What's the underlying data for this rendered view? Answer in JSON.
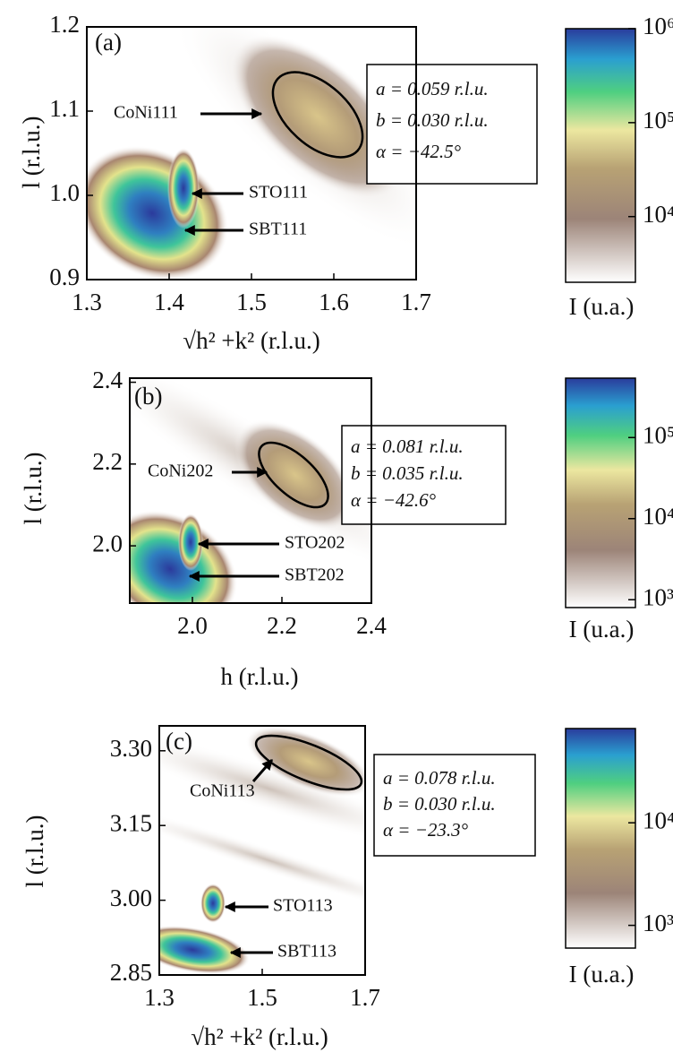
{
  "chart_data": [
    {
      "type": "heatmap",
      "panel": "(a)",
      "xlabel": "√h² +k² (r.l.u.)",
      "ylabel": "l (r.l.u.)",
      "xlim": [
        1.3,
        1.7
      ],
      "xticks": [
        1.3,
        1.4,
        1.5,
        1.6,
        1.7
      ],
      "ylim": [
        0.9,
        1.2
      ],
      "yticks": [
        0.9,
        {
          "value": 1,
          "label": "1.0"
        },
        1.1,
        1.2
      ],
      "annotations": [
        "CoNi111",
        "STO111",
        "SBT111"
      ],
      "fit": [
        "a = 0.059 r.l.u.",
        "b = 0.030 r.l.u.",
        "α = −42.5°"
      ],
      "colorbar": {
        "label": "I (u.a.)",
        "scale": "log",
        "lim": [
          2000,
          1000000
        ],
        "ticks": [
          {
            "value": 10000,
            "label": "10⁴"
          },
          {
            "value": 100000,
            "label": "10⁵"
          },
          {
            "value": 1000000,
            "label": "10⁶"
          }
        ]
      }
    },
    {
      "type": "heatmap",
      "panel": "(b)",
      "xlabel": "h (r.l.u.)",
      "ylabel": "l (r.l.u.)",
      "xlim": [
        1.86,
        2.4
      ],
      "xticks": [
        {
          "value": 2,
          "label": "2.0"
        },
        2.2,
        2.4
      ],
      "ylim": [
        1.86,
        2.41
      ],
      "yticks": [
        {
          "value": 2,
          "label": "2.0"
        },
        2.2,
        2.4
      ],
      "annotations": [
        "CoNi202",
        "STO202",
        "SBT202"
      ],
      "fit": [
        "a = 0.081 r.l.u.",
        "b = 0.035 r.l.u.",
        "α = −42.6°"
      ],
      "colorbar": {
        "label": "I (u.a.)",
        "scale": "log",
        "lim": [
          800,
          540000
        ],
        "ticks": [
          {
            "value": 1000,
            "label": "10³"
          },
          {
            "value": 10000,
            "label": "10⁴"
          },
          {
            "value": 100000,
            "label": "10⁵"
          }
        ]
      }
    },
    {
      "type": "heatmap",
      "panel": "(c)",
      "xlabel": "√h² +k² (r.l.u.)",
      "ylabel": "l (r.l.u.)",
      "xlim": [
        1.3,
        1.7
      ],
      "xticks": [
        1.3,
        1.5,
        1.7
      ],
      "ylim": [
        2.85,
        3.35
      ],
      "yticks": [
        2.85,
        {
          "value": 3,
          "label": "3.00"
        },
        3.15,
        {
          "value": 3.3,
          "label": "3.30"
        }
      ],
      "annotations": [
        "CoNi113",
        "STO113",
        "SBT113"
      ],
      "fit": [
        "a = 0.078 r.l.u.",
        "b = 0.030 r.l.u.",
        "α = −23.3°"
      ],
      "colorbar": {
        "label": "I (u.a.)",
        "scale": "log",
        "lim": [
          600,
          83000
        ],
        "ticks": [
          {
            "value": 1000,
            "label": "10³"
          },
          {
            "value": 10000,
            "label": "10⁴"
          }
        ]
      }
    }
  ]
}
